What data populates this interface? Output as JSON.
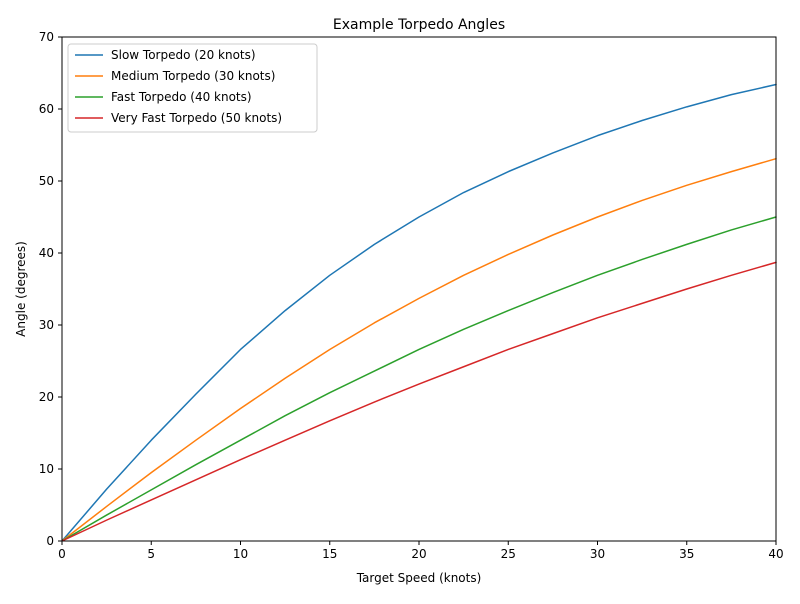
{
  "chart_data": {
    "type": "line",
    "title": "Example Torpedo Angles",
    "xlabel": "Target Speed (knots)",
    "ylabel": "Angle (degrees)",
    "xlim": [
      0,
      40
    ],
    "ylim": [
      0,
      70
    ],
    "xticks": [
      0,
      5,
      10,
      15,
      20,
      25,
      30,
      35,
      40
    ],
    "yticks": [
      0,
      10,
      20,
      30,
      40,
      50,
      60,
      70
    ],
    "grid": false,
    "legend_position": "top-left",
    "x": [
      0,
      2.5,
      5,
      7.5,
      10,
      12.5,
      15,
      17.5,
      20,
      22.5,
      25,
      27.5,
      30,
      32.5,
      35,
      37.5,
      40
    ],
    "series": [
      {
        "name": "Slow Torpedo (20 knots)",
        "color": "#1f77b4",
        "values": [
          0,
          7.2,
          14.0,
          20.4,
          26.6,
          32.0,
          36.9,
          41.2,
          45.0,
          48.4,
          51.3,
          53.9,
          56.3,
          58.4,
          60.3,
          62.0,
          63.4
        ]
      },
      {
        "name": "Medium Torpedo (30 knots)",
        "color": "#ff7f0e",
        "values": [
          0,
          4.8,
          9.5,
          14.0,
          18.4,
          22.6,
          26.6,
          30.3,
          33.7,
          36.9,
          39.8,
          42.5,
          45.0,
          47.3,
          49.4,
          51.3,
          53.1
        ]
      },
      {
        "name": "Fast Torpedo (40 knots)",
        "color": "#2ca02c",
        "values": [
          0,
          3.6,
          7.1,
          10.6,
          14.0,
          17.4,
          20.6,
          23.6,
          26.6,
          29.4,
          32.0,
          34.5,
          36.9,
          39.1,
          41.2,
          43.2,
          45.0
        ]
      },
      {
        "name": "Very Fast Torpedo (50 knots)",
        "color": "#d62728",
        "values": [
          0,
          2.9,
          5.7,
          8.5,
          11.3,
          14.0,
          16.7,
          19.3,
          21.8,
          24.2,
          26.6,
          28.8,
          31.0,
          33.0,
          35.0,
          36.9,
          38.7
        ]
      }
    ]
  }
}
